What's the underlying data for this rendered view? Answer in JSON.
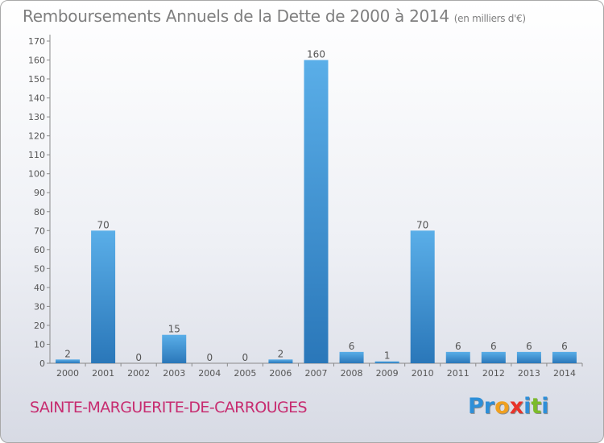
{
  "chart_data": {
    "type": "bar",
    "title": "Remboursements Annuels de la Dette de 2000 à 2014",
    "unit_note": "(en milliers d'€)",
    "categories": [
      "2000",
      "2001",
      "2002",
      "2003",
      "2004",
      "2005",
      "2006",
      "2007",
      "2008",
      "2009",
      "2010",
      "2011",
      "2012",
      "2013",
      "2014"
    ],
    "values": [
      2,
      70,
      0,
      15,
      0,
      0,
      2,
      160,
      6,
      1,
      70,
      6,
      6,
      6,
      6
    ],
    "data_labels": [
      "2",
      "70",
      "0",
      "15",
      "0",
      "0",
      "2",
      "160",
      "6",
      "1",
      "70",
      "6",
      "6",
      "6",
      "6"
    ],
    "y_ticks": [
      0,
      10,
      20,
      30,
      40,
      50,
      60,
      70,
      80,
      90,
      100,
      110,
      120,
      130,
      140,
      150,
      160,
      170
    ],
    "ylim": [
      0,
      170
    ],
    "xlabel": "",
    "ylabel": "",
    "grid": false,
    "bar_color_top": "#5aaee8",
    "bar_color_bottom": "#2a77b9"
  },
  "commune": "SAINTE-MARGUERITE-DE-CARROUGES",
  "logo": {
    "letters": [
      "P",
      "r",
      "o",
      "x",
      "i",
      "t",
      "i"
    ],
    "colors": [
      "#2e8fd8",
      "#2e8fd8",
      "#f0a020",
      "#e8332a",
      "#2e8fd8",
      "#7cbb2a",
      "#2e8fd8"
    ]
  }
}
